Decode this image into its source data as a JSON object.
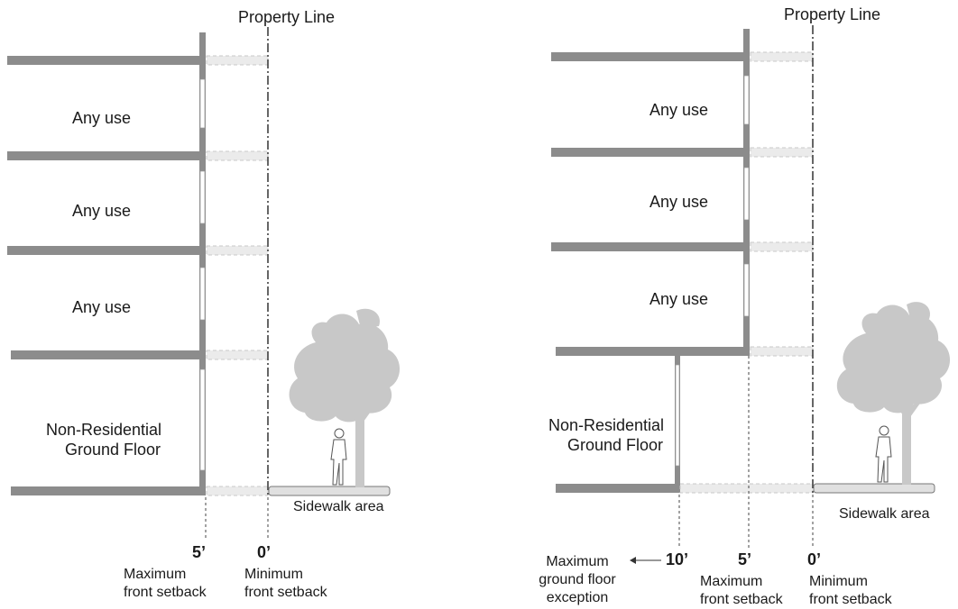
{
  "left_panel": {
    "property_line_label": "Property Line",
    "floors": [
      "Any use",
      "Any use",
      "Any use"
    ],
    "ground_floor": [
      "Non-Residential",
      "Ground Floor"
    ],
    "sidewalk_label": "Sidewalk area",
    "dims": [
      {
        "value": "5’",
        "caption": [
          "Maximum",
          "front setback"
        ]
      },
      {
        "value": "0’",
        "caption": [
          "Minimum",
          "front setback"
        ]
      }
    ]
  },
  "right_panel": {
    "property_line_label": "Property Line",
    "floors": [
      "Any use",
      "Any use",
      "Any use"
    ],
    "ground_floor": [
      "Non-Residential",
      "Ground Floor"
    ],
    "sidewalk_label": "Sidewalk area",
    "dims": [
      {
        "value": "10’",
        "caption": [
          "Maximum",
          "ground floor",
          "exception"
        ]
      },
      {
        "value": "5’",
        "caption": [
          "Maximum",
          "front setback"
        ]
      },
      {
        "value": "0’",
        "caption": [
          "Minimum",
          "front setback"
        ]
      }
    ]
  },
  "colors": {
    "slab": "#8c8c8c",
    "ghost": "#ebebeb",
    "tree": "#c8c8c8"
  }
}
